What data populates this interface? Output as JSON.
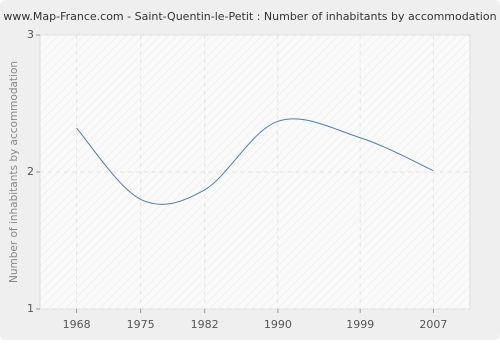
{
  "chart_data": {
    "type": "line",
    "title": "www.Map-France.com - Saint-Quentin-le-Petit : Number of inhabitants by accommodation",
    "y_label": "Number of inhabitants by accommodation",
    "x": [
      1968,
      1975,
      1982,
      1990,
      1999,
      2007
    ],
    "series": [
      {
        "name": "Number of inhabitants by accommodation",
        "color": "#4f7db3",
        "values": [
          2.32,
          1.8,
          1.87,
          2.37,
          2.25,
          2.01
        ]
      }
    ],
    "xlim": [
      1964,
      2011
    ],
    "xticks": [
      1968,
      1975,
      1982,
      1990,
      1999,
      2007
    ],
    "ylim": [
      1,
      3
    ],
    "yticks": [
      1,
      2,
      3
    ],
    "grid": true
  }
}
